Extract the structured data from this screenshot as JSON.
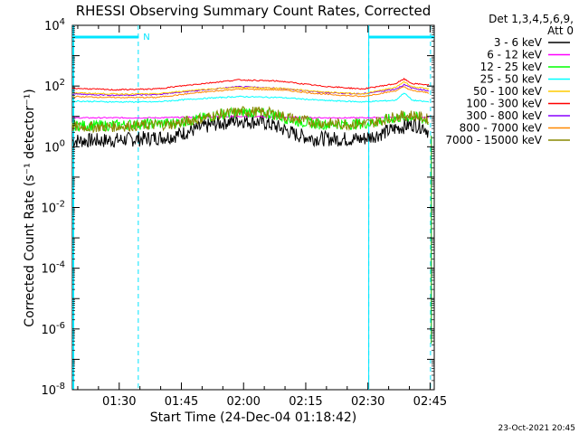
{
  "chart_data": {
    "type": "line",
    "title": "RHESSI Observing Summary Count Rates, Corrected",
    "xlabel": "Start Time (24-Dec-04 01:18:42)",
    "ylabel": "Corrected Count Rate (s⁻¹ detector⁻¹)",
    "x_unit": "minutes after 01:18:42",
    "xlim": [
      0,
      87.3
    ],
    "ylim": [
      1e-08,
      10000
    ],
    "yscale": "log",
    "grid": false,
    "x_ticks": [
      {
        "label": "01:30",
        "value": 11.3
      },
      {
        "label": "01:45",
        "value": 26.3
      },
      {
        "label": "02:00",
        "value": 41.3
      },
      {
        "label": "02:15",
        "value": 56.3
      },
      {
        "label": "02:30",
        "value": 71.3
      },
      {
        "label": "02:45",
        "value": 86.3
      }
    ],
    "y_ticks": [
      {
        "mant": "10",
        "exp": "4",
        "value": 10000
      },
      {
        "mant": "10",
        "exp": "2",
        "value": 100
      },
      {
        "mant": "10",
        "exp": "0",
        "value": 1
      },
      {
        "mant": "10",
        "exp": "-2",
        "value": 0.01
      },
      {
        "mant": "10",
        "exp": "-4",
        "value": 0.0001
      },
      {
        "mant": "10",
        "exp": "-6",
        "value": 1e-06
      },
      {
        "mant": "10",
        "exp": "-8",
        "value": 1e-08
      }
    ],
    "legend_position": "right",
    "legend_header": [
      "Det 1,3,4,5,6,9,",
      "Att 0"
    ],
    "night_label": "N",
    "night_bars": [
      {
        "start": 0,
        "end": 16.0
      },
      {
        "start": 71.5,
        "end": 87.3
      }
    ],
    "night_lines": [
      15.9,
      71.5,
      86.4
    ],
    "night_color": "#00e5ff",
    "series": [
      {
        "name": "3 - 6 keV",
        "color": "#000000",
        "noisy": true,
        "x": [
          0,
          8,
          16,
          24,
          28,
          34,
          40,
          46,
          50,
          54,
          58,
          64,
          70,
          74,
          78,
          82,
          85,
          86
        ],
        "y": [
          1.6,
          1.6,
          1.8,
          2.2,
          3.2,
          5.5,
          7.5,
          6.5,
          4.2,
          2.5,
          1.9,
          1.8,
          1.8,
          2.6,
          4,
          5.5,
          4.5,
          3
        ]
      },
      {
        "name": "6 - 12 keV",
        "color": "#ff00ff",
        "x": [
          0,
          10,
          20,
          30,
          40,
          50,
          60,
          70,
          80,
          86
        ],
        "y": [
          9,
          9,
          9,
          9.5,
          10,
          9.5,
          9,
          9,
          9.5,
          9
        ]
      },
      {
        "name": "12 - 25 keV",
        "color": "#00ff00",
        "noisy": true,
        "x": [
          0,
          8,
          16,
          24,
          30,
          36,
          42,
          48,
          54,
          60,
          66,
          72,
          78,
          82,
          86
        ],
        "y": [
          5,
          5,
          5.5,
          6,
          8,
          12,
          14,
          12,
          7,
          5.5,
          5.5,
          6,
          9,
          10,
          7
        ]
      },
      {
        "name": "25 - 50 keV",
        "color": "#00ffff",
        "x": [
          0,
          10,
          20,
          30,
          40,
          50,
          60,
          70,
          78,
          80,
          82,
          86
        ],
        "y": [
          32,
          30,
          30,
          38,
          45,
          42,
          34,
          30,
          34,
          60,
          34,
          30
        ]
      },
      {
        "name": "50 - 100 keV",
        "color": "#ffcc00",
        "x": [
          0,
          10,
          20,
          30,
          40,
          50,
          60,
          70,
          78,
          80,
          82,
          86
        ],
        "y": [
          60,
          55,
          55,
          75,
          90,
          85,
          65,
          55,
          90,
          140,
          95,
          80
        ]
      },
      {
        "name": "100 - 300 keV",
        "color": "#ff0000",
        "x": [
          0,
          10,
          20,
          30,
          40,
          50,
          60,
          70,
          78,
          80,
          82,
          86
        ],
        "y": [
          85,
          75,
          80,
          115,
          160,
          145,
          100,
          80,
          120,
          170,
          120,
          110
        ]
      },
      {
        "name": "300 - 800 keV",
        "color": "#8800ff",
        "x": [
          0,
          10,
          20,
          30,
          40,
          50,
          60,
          70,
          78,
          80,
          82,
          86
        ],
        "y": [
          55,
          50,
          52,
          70,
          95,
          85,
          62,
          55,
          80,
          110,
          85,
          70
        ]
      },
      {
        "name": "800 - 7000 keV",
        "color": "#ff8800",
        "x": [
          0,
          10,
          20,
          30,
          40,
          50,
          60,
          70,
          78,
          80,
          82,
          86
        ],
        "y": [
          45,
          42,
          42,
          60,
          80,
          75,
          55,
          45,
          70,
          95,
          70,
          60
        ]
      },
      {
        "name": "7000 - 15000 keV",
        "color": "#888800",
        "noisy": true,
        "x": [
          0,
          8,
          16,
          24,
          30,
          36,
          42,
          48,
          54,
          60,
          66,
          72,
          78,
          82,
          86
        ],
        "y": [
          4.5,
          4.5,
          5,
          5.5,
          8,
          12,
          15,
          13,
          8,
          6,
          5.5,
          6,
          10,
          11,
          8
        ]
      }
    ],
    "footer": "23-Oct-2021 20:45"
  }
}
